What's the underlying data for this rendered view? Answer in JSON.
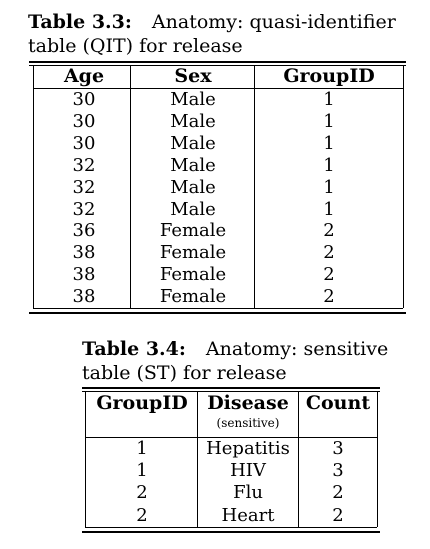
{
  "table1": {
    "label": "Table 3.3:",
    "caption_line1": "Anatomy: quasi-identifier",
    "caption_line2": "table (QIT) for release",
    "headers": [
      "Age",
      "Sex",
      "GroupID"
    ],
    "rows": [
      [
        "30",
        "Male",
        "1"
      ],
      [
        "30",
        "Male",
        "1"
      ],
      [
        "30",
        "Male",
        "1"
      ],
      [
        "32",
        "Male",
        "1"
      ],
      [
        "32",
        "Male",
        "1"
      ],
      [
        "32",
        "Male",
        "1"
      ],
      [
        "36",
        "Female",
        "2"
      ],
      [
        "38",
        "Female",
        "2"
      ],
      [
        "38",
        "Female",
        "2"
      ],
      [
        "38",
        "Female",
        "2"
      ]
    ]
  },
  "table2": {
    "label": "Table 3.4:",
    "caption_line1": "Anatomy: sensitive",
    "caption_line2": "table (ST) for release",
    "headers": [
      "GroupID",
      "Disease",
      "Count"
    ],
    "disease_subheader": "(sensitive)",
    "rows": [
      [
        "1",
        "Hepatitis",
        "3"
      ],
      [
        "1",
        "HIV",
        "3"
      ],
      [
        "2",
        "Flu",
        "2"
      ],
      [
        "2",
        "Heart",
        "2"
      ]
    ]
  }
}
